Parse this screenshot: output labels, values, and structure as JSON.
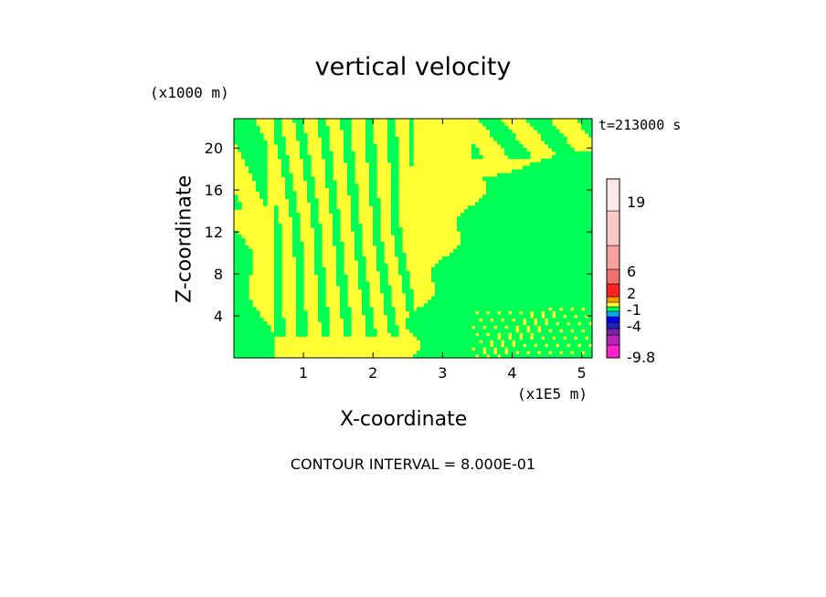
{
  "chart_data": {
    "type": "heatmap",
    "title": "vertical velocity",
    "xlabel": "X-coordinate",
    "ylabel": "Z-coordinate",
    "x_unit": "(x1E5 m)",
    "y_unit": "(x1000 m)",
    "time_label": "t=213000 s",
    "xlim": [
      0,
      5.15
    ],
    "ylim": [
      0,
      22.8
    ],
    "x_ticks": [
      "1",
      "2",
      "3",
      "4",
      "5"
    ],
    "y_ticks": [
      "4",
      "8",
      "12",
      "16",
      "20"
    ],
    "field_colors": {
      "positive": "#ffff33",
      "near_zero": "#00ff55"
    },
    "colorbar": {
      "tick_labels": [
        "19",
        "6",
        "2",
        "-1",
        "-4",
        "-9.8"
      ],
      "levels": [
        {
          "color": "#ff22cc"
        },
        {
          "color": "#bb22bb"
        },
        {
          "color": "#7722aa"
        },
        {
          "color": "#2222bb"
        },
        {
          "color": "#0000ff"
        },
        {
          "color": "#00aaee"
        },
        {
          "color": "#00ff55"
        },
        {
          "color": "#ffff33"
        },
        {
          "color": "#ff9900"
        },
        {
          "color": "#ff2222"
        },
        {
          "color": "#f07070"
        },
        {
          "color": "#f6a0a0"
        },
        {
          "color": "#fbc8c8"
        },
        {
          "color": "#fde8e8"
        }
      ]
    },
    "contour_interval": "CONTOUR INTERVAL = 8.000E-01"
  }
}
